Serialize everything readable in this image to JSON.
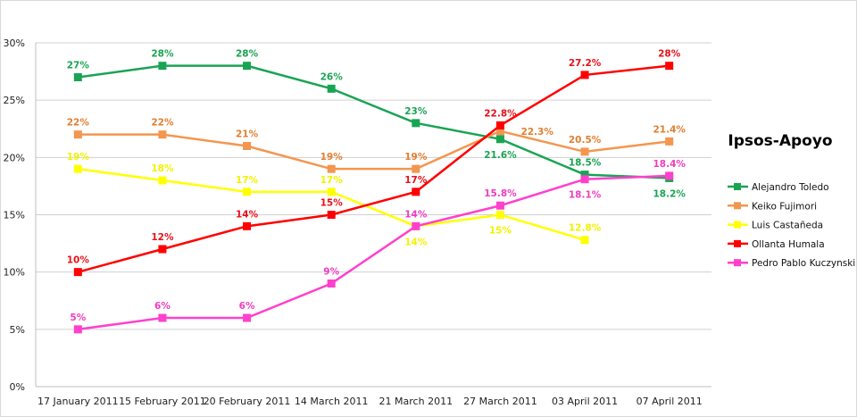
{
  "chart_data": {
    "type": "line",
    "title": "Ipsos-Apoyo",
    "xlabel": "",
    "ylabel": "",
    "ylim": [
      0,
      30
    ],
    "y_ticks": [
      "0%",
      "5%",
      "10%",
      "15%",
      "20%",
      "25%",
      "30%"
    ],
    "grid": "horizontal",
    "legend_position": "right",
    "categories": [
      "17 January 2011",
      "15 February 2011",
      "20 February 2011",
      "14 March 2011",
      "21 March 2011",
      "27 March 2011",
      "03 April 2011",
      "07 April 2011"
    ],
    "series": [
      {
        "name": "Alejandro Toledo",
        "color": "#19a453",
        "label_color": "#19a453",
        "values": [
          27,
          28,
          28,
          26,
          23,
          21.6,
          18.5,
          18.2
        ],
        "labels": [
          "27%",
          "28%",
          "28%",
          "26%",
          "23%",
          "21.6%",
          "18.5%",
          "18.2%"
        ]
      },
      {
        "name": "Keiko Fujimori",
        "color": "#f39650",
        "label_color": "#e07f30",
        "values": [
          22,
          22,
          21,
          19,
          19,
          22.3,
          20.5,
          21.4
        ],
        "labels": [
          "22%",
          "22%",
          "21%",
          "19%",
          "19%",
          "22.3%",
          "20.5%",
          "21.4%"
        ]
      },
      {
        "name": "Luis Castañeda",
        "color": "#ffff00",
        "label_color": "#f2f200",
        "values": [
          19,
          18,
          17,
          17,
          14,
          15,
          12.8,
          null
        ],
        "labels": [
          "19%",
          "18%",
          "17%",
          "17%",
          "14%",
          "15%",
          "12.8%",
          null
        ]
      },
      {
        "name": "Ollanta Humala",
        "color": "#ff0000",
        "label_color": "#e8101a",
        "values": [
          10,
          12,
          14,
          15,
          17,
          22.8,
          27.2,
          28
        ],
        "labels": [
          "10%",
          "12%",
          "14%",
          "15%",
          "17%",
          "22.8%",
          "27.2%",
          "28%"
        ]
      },
      {
        "name": "Pedro Pablo Kuczynski",
        "color": "#ff40cc",
        "label_color": "#f03cc0",
        "values": [
          5,
          6,
          6,
          9,
          14,
          15.8,
          18.1,
          18.4
        ],
        "labels": [
          "5%",
          "6%",
          "6%",
          "9%",
          "14%",
          "15.8%",
          "18.1%",
          "18.4%"
        ]
      }
    ]
  }
}
